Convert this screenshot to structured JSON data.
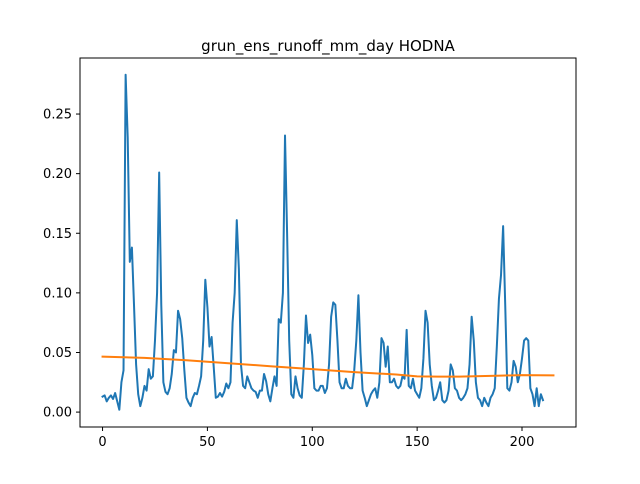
{
  "chart_data": {
    "type": "line",
    "title": "grun_ens_runoff_mm_day HODNA",
    "xlabel": "",
    "ylabel": "",
    "xlim": [
      -10.75,
      225.75
    ],
    "ylim": [
      -0.0125,
      0.297
    ],
    "x_ticks": [
      0,
      50,
      100,
      150,
      200
    ],
    "y_ticks": [
      0.0,
      0.05,
      0.1,
      0.15,
      0.2,
      0.25
    ],
    "x_tick_labels": [
      "0",
      "50",
      "100",
      "150",
      "200"
    ],
    "y_tick_labels": [
      "0.00",
      "0.05",
      "0.10",
      "0.15",
      "0.20",
      "0.25"
    ],
    "grid": false,
    "legend": "none",
    "series": [
      {
        "color": "#1f77b4",
        "x_start": 0,
        "x_step": 1,
        "values": [
          0.013,
          0.014,
          0.009,
          0.012,
          0.014,
          0.011,
          0.016,
          0.009,
          0.002,
          0.025,
          0.035,
          0.283,
          0.23,
          0.126,
          0.138,
          0.09,
          0.04,
          0.015,
          0.005,
          0.012,
          0.022,
          0.018,
          0.036,
          0.028,
          0.03,
          0.06,
          0.1,
          0.201,
          0.09,
          0.025,
          0.017,
          0.015,
          0.02,
          0.032,
          0.052,
          0.05,
          0.085,
          0.078,
          0.062,
          0.035,
          0.012,
          0.008,
          0.005,
          0.012,
          0.016,
          0.015,
          0.022,
          0.03,
          0.06,
          0.111,
          0.088,
          0.055,
          0.063,
          0.038,
          0.012,
          0.013,
          0.016,
          0.013,
          0.017,
          0.024,
          0.02,
          0.025,
          0.075,
          0.1,
          0.161,
          0.12,
          0.04,
          0.022,
          0.02,
          0.03,
          0.025,
          0.02,
          0.018,
          0.017,
          0.012,
          0.018,
          0.018,
          0.032,
          0.026,
          0.015,
          0.009,
          0.02,
          0.03,
          0.022,
          0.078,
          0.075,
          0.1,
          0.232,
          0.15,
          0.06,
          0.015,
          0.012,
          0.03,
          0.02,
          0.014,
          0.012,
          0.04,
          0.081,
          0.058,
          0.065,
          0.048,
          0.02,
          0.018,
          0.018,
          0.022,
          0.022,
          0.016,
          0.02,
          0.04,
          0.08,
          0.092,
          0.09,
          0.06,
          0.025,
          0.02,
          0.02,
          0.028,
          0.022,
          0.02,
          0.02,
          0.035,
          0.06,
          0.098,
          0.05,
          0.018,
          0.012,
          0.005,
          0.01,
          0.015,
          0.018,
          0.02,
          0.012,
          0.025,
          0.062,
          0.058,
          0.038,
          0.055,
          0.025,
          0.025,
          0.028,
          0.022,
          0.02,
          0.022,
          0.03,
          0.028,
          0.069,
          0.022,
          0.02,
          0.028,
          0.018,
          0.015,
          0.012,
          0.02,
          0.045,
          0.085,
          0.075,
          0.04,
          0.022,
          0.01,
          0.012,
          0.018,
          0.025,
          0.01,
          0.008,
          0.01,
          0.018,
          0.04,
          0.035,
          0.02,
          0.018,
          0.012,
          0.01,
          0.012,
          0.015,
          0.02,
          0.04,
          0.08,
          0.06,
          0.025,
          0.012,
          0.01,
          0.005,
          0.012,
          0.008,
          0.005,
          0.012,
          0.015,
          0.02,
          0.055,
          0.095,
          0.115,
          0.156,
          0.09,
          0.02,
          0.018,
          0.025,
          0.043,
          0.038,
          0.025,
          0.032,
          0.045,
          0.06,
          0.062,
          0.06,
          0.02,
          0.015,
          0.005,
          0.02,
          0.005,
          0.015,
          0.01
        ]
      },
      {
        "color": "#ff7f0e",
        "points": [
          [
            0,
            0.0465
          ],
          [
            20,
            0.0455
          ],
          [
            40,
            0.0435
          ],
          [
            60,
            0.041
          ],
          [
            80,
            0.0385
          ],
          [
            100,
            0.036
          ],
          [
            120,
            0.0335
          ],
          [
            140,
            0.0315
          ],
          [
            150,
            0.03
          ],
          [
            160,
            0.0298
          ],
          [
            170,
            0.0298
          ],
          [
            180,
            0.0302
          ],
          [
            190,
            0.0306
          ],
          [
            200,
            0.031
          ],
          [
            215,
            0.0308
          ]
        ]
      }
    ]
  }
}
